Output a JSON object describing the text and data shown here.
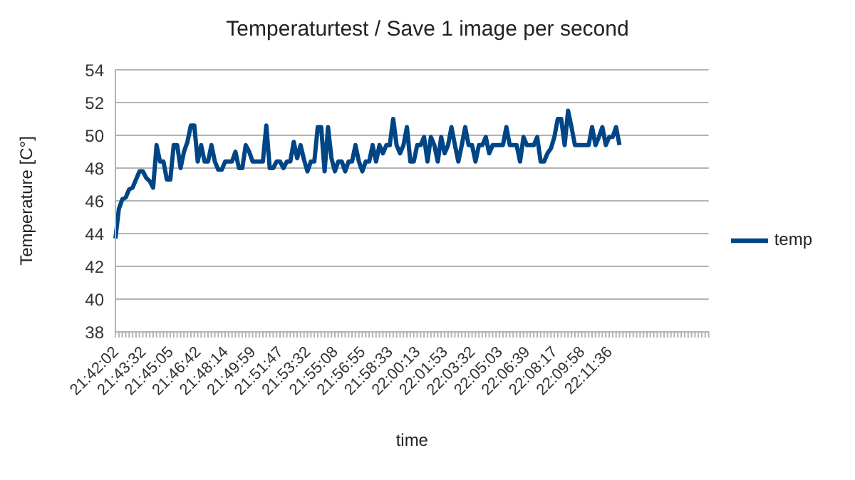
{
  "chart_data": {
    "type": "line",
    "title": "Temperaturtest / Save 1 image per second",
    "xlabel": "time",
    "ylabel": "Temperature [C°]",
    "categories": [
      "21:42:02",
      null,
      null,
      null,
      null,
      null,
      null,
      null,
      "21:43:32",
      null,
      null,
      null,
      null,
      null,
      null,
      null,
      "21:45:05",
      null,
      null,
      null,
      null,
      null,
      null,
      null,
      "21:46:42",
      null,
      null,
      null,
      null,
      null,
      null,
      null,
      "21:48:14",
      null,
      null,
      null,
      null,
      null,
      null,
      null,
      "21:49:59",
      null,
      null,
      null,
      null,
      null,
      null,
      null,
      "21:51:47",
      null,
      null,
      null,
      null,
      null,
      null,
      null,
      "21:53:32",
      null,
      null,
      null,
      null,
      null,
      null,
      null,
      "21:55:08",
      null,
      null,
      null,
      null,
      null,
      null,
      null,
      "21:56:55",
      null,
      null,
      null,
      null,
      null,
      null,
      null,
      "21:58:33",
      null,
      null,
      null,
      null,
      null,
      null,
      null,
      "22:00:13",
      null,
      null,
      null,
      null,
      null,
      null,
      null,
      "22:01:53",
      null,
      null,
      null,
      null,
      null,
      null,
      null,
      "22:03:32",
      null,
      null,
      null,
      null,
      null,
      null,
      null,
      "22:05:03",
      null,
      null,
      null,
      null,
      null,
      null,
      null,
      "22:06:39",
      null,
      null,
      null,
      null,
      null,
      null,
      null,
      "22:08:17",
      null,
      null,
      null,
      null,
      null,
      null,
      null,
      "22:09:58",
      null,
      null,
      null,
      null,
      null,
      null,
      null,
      "22:11:36",
      null,
      null,
      null,
      null,
      null,
      null,
      null,
      null,
      null,
      null,
      null,
      null,
      null,
      null,
      null,
      null,
      null,
      null,
      null,
      null,
      null,
      null,
      null,
      null,
      null,
      null,
      null,
      null,
      null
    ],
    "series": [
      {
        "name": "temp",
        "color": "#004586",
        "values": [
          43.7,
          45.5,
          46.1,
          46.2,
          46.7,
          46.8,
          47.3,
          47.8,
          47.8,
          47.4,
          47.2,
          46.8,
          49.4,
          48.4,
          48.4,
          47.3,
          47.3,
          49.4,
          49.4,
          48,
          49,
          49.6,
          50.6,
          50.6,
          48.4,
          49.4,
          48.4,
          48.4,
          49.4,
          48.4,
          47.9,
          47.9,
          48.4,
          48.4,
          48.4,
          49,
          48,
          48,
          49.4,
          49,
          48.4,
          48.4,
          48.4,
          48.4,
          50.6,
          48,
          48,
          48.4,
          48.4,
          48,
          48.4,
          48.4,
          49.6,
          48.6,
          49.4,
          48.5,
          47.8,
          48.4,
          48.4,
          50.5,
          50.5,
          47.8,
          50.5,
          48.6,
          47.8,
          48.4,
          48.4,
          47.8,
          48.4,
          48.4,
          49.4,
          48.4,
          47.8,
          48.4,
          48.4,
          49.4,
          48.4,
          49.4,
          48.9,
          49.4,
          49.4,
          51,
          49.4,
          48.9,
          49.4,
          50.5,
          48.4,
          48.4,
          49.4,
          49.4,
          49.9,
          48.4,
          49.9,
          49.4,
          48.4,
          49.9,
          48.9,
          49.4,
          50.5,
          49.4,
          48.4,
          49.4,
          50.5,
          49.4,
          49.4,
          48.4,
          49.4,
          49.4,
          49.9,
          48.9,
          49.4,
          49.4,
          49.4,
          49.4,
          50.5,
          49.4,
          49.4,
          49.4,
          48.4,
          49.9,
          49.4,
          49.4,
          49.4,
          49.9,
          48.4,
          48.4,
          48.9,
          49.2,
          49.9,
          51,
          51,
          49.4,
          51.5,
          50.5,
          49.4,
          49.4,
          49.4,
          49.4,
          49.4,
          50.5,
          49.4,
          49.9,
          50.5,
          49.4,
          49.9,
          49.9,
          50.5,
          49.4,
          null,
          null,
          null,
          null,
          null,
          null,
          null,
          null,
          null,
          null,
          null,
          null,
          null,
          null,
          null,
          null,
          null,
          null,
          null,
          null,
          null,
          null,
          null,
          null,
          null,
          null
        ]
      }
    ],
    "ylim": [
      38,
      54
    ],
    "yticks": [
      38,
      40,
      42,
      44,
      46,
      48,
      50,
      52,
      54
    ],
    "grid": "y",
    "legend": "right",
    "marker": "none",
    "line_style": "solid"
  }
}
